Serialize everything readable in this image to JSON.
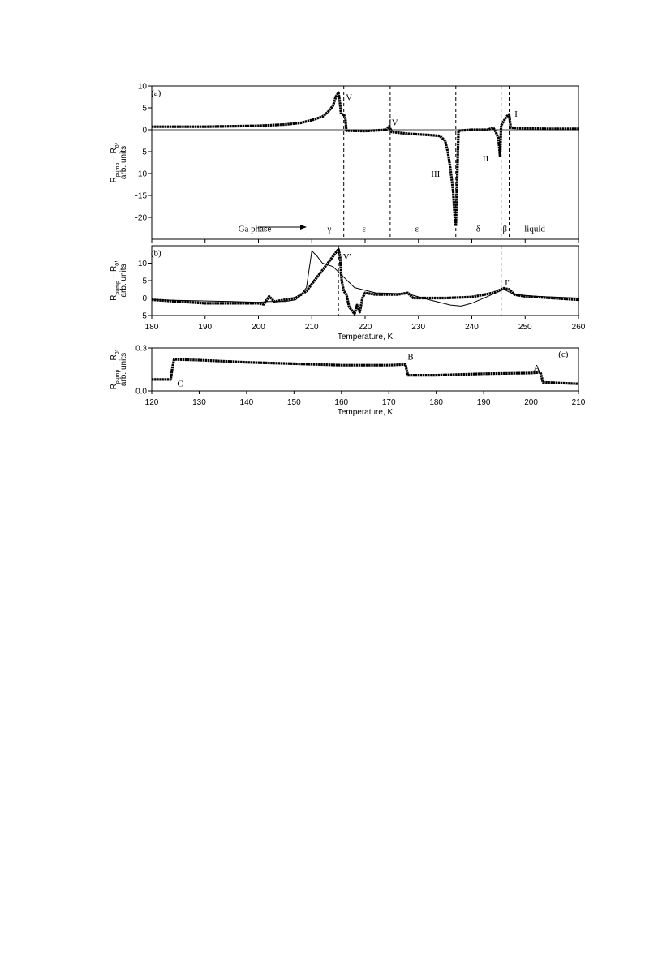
{
  "chart_data": [
    {
      "type": "line",
      "panel_label": "(a)",
      "panel_label_at": [
        180.8,
        8.5
      ],
      "ylabel": {
        "line1": [
          "R",
          "pump",
          " – R",
          "0",
          ","
        ],
        "line2": "arb. units"
      },
      "xlim": [
        180,
        260
      ],
      "xticks": [
        180,
        190,
        200,
        210,
        220,
        230,
        240,
        250,
        260
      ],
      "xtick_labels": false,
      "ylim": [
        -25,
        10
      ],
      "yticks": [
        -20,
        -15,
        -10,
        -5,
        0,
        5,
        10
      ],
      "zero_line": true,
      "vlines": [
        216,
        224.7,
        237,
        245.5,
        247
      ],
      "series": [
        {
          "color": "#000",
          "style": "thick",
          "x": [
            180,
            190,
            200,
            205,
            208,
            210,
            212,
            213,
            214,
            214.5,
            215,
            215.3,
            215.5,
            216,
            216.3,
            216.5,
            220,
            224,
            224.5,
            225,
            228,
            232,
            234,
            235,
            235.5,
            236,
            236.5,
            236.8,
            237,
            237.5,
            240,
            243,
            244,
            244.5,
            245,
            245.3,
            245.5,
            246,
            246.5,
            247,
            247.3,
            250,
            255,
            260
          ],
          "values": [
            0.7,
            0.7,
            0.9,
            1.2,
            1.6,
            2.2,
            3,
            4,
            5.5,
            7.5,
            8.5,
            6,
            3.5,
            3.5,
            2.5,
            -0.2,
            -0.3,
            0,
            0.8,
            -0.5,
            -0.9,
            -1.2,
            -1.4,
            -2.5,
            -5,
            -9,
            -14,
            -20,
            -22,
            -0.2,
            0,
            0,
            0.5,
            -0.5,
            -2,
            -6,
            1,
            2,
            3,
            3.5,
            0.5,
            0.3,
            0.2,
            0.2
          ]
        }
      ],
      "annotations": [
        {
          "text": "V",
          "at": [
            217,
            7.5
          ]
        },
        {
          "text": "IV",
          "at": [
            225.3,
            1.8
          ]
        },
        {
          "text": "III",
          "at": [
            233.2,
            -10
          ]
        },
        {
          "text": "II",
          "at": [
            242.6,
            -6.5
          ]
        },
        {
          "text": "I",
          "at": [
            248.3,
            3.7
          ]
        },
        {
          "text": "Ga phase",
          "at": [
            199.3,
            -22.5
          ]
        },
        {
          "text": "γ",
          "at": [
            213.3,
            -22.5
          ]
        },
        {
          "text": "ε",
          "at": [
            219.8,
            -22.5
          ]
        },
        {
          "text": "ε",
          "at": [
            229.7,
            -22.5
          ]
        },
        {
          "text": "δ",
          "at": [
            241.2,
            -22.5
          ]
        },
        {
          "text": "β",
          "at": [
            246.2,
            -22.5
          ]
        },
        {
          "text": "liquid",
          "at": [
            251.8,
            -22.5
          ]
        }
      ]
    },
    {
      "type": "line",
      "panel_label": "(b)",
      "panel_label_at": [
        180.8,
        13
      ],
      "ylabel": {
        "line1": [
          "R",
          "pump",
          " – R",
          "0",
          ","
        ],
        "line2": "arb. units"
      },
      "xlabel": "Temperature, K",
      "xlim": [
        180,
        260
      ],
      "xticks": [
        180,
        190,
        200,
        210,
        220,
        230,
        240,
        250,
        260
      ],
      "xtick_labels": true,
      "ylim": [
        -5,
        15
      ],
      "yticks": [
        -5,
        0,
        5,
        10
      ],
      "zero_line": true,
      "vlines": [
        215,
        245.5
      ],
      "series": [
        {
          "color": "#000",
          "style": "thin",
          "x": [
            180,
            195,
            200,
            202,
            205,
            207,
            208,
            209,
            210,
            211,
            212,
            214,
            216,
            218,
            222,
            228,
            232,
            236,
            238,
            240,
            243,
            246,
            248,
            252,
            260
          ],
          "values": [
            -0.5,
            -1,
            -1.2,
            -1,
            -1,
            -0.5,
            1,
            3,
            13.5,
            12,
            10,
            9,
            6,
            3,
            1.5,
            1.2,
            -0.5,
            -2,
            -2.3,
            -1.5,
            0.5,
            2.5,
            1,
            0.5,
            0
          ]
        },
        {
          "color": "#000",
          "style": "thick",
          "x": [
            180,
            190,
            200,
            201,
            202,
            203,
            205,
            207,
            209,
            211,
            213,
            215,
            215.3,
            215.6,
            216,
            216.5,
            217,
            218,
            218.5,
            219,
            219.5,
            220,
            222,
            226,
            228,
            229,
            235,
            240,
            244,
            246,
            247,
            248,
            250,
            255,
            260
          ],
          "values": [
            -0.5,
            -1.5,
            -1.5,
            -1.8,
            0.5,
            -1,
            -0.5,
            0,
            2,
            6,
            10,
            14,
            12,
            5,
            2,
            1,
            -2.5,
            -4.5,
            -2,
            -4,
            0,
            1.5,
            1,
            1,
            1.5,
            0,
            0,
            0.3,
            1.5,
            2.8,
            2.5,
            1,
            0.5,
            0,
            -0.5
          ]
        }
      ],
      "annotations": [
        {
          "text": "V'",
          "at": [
            216.6,
            12
          ]
        },
        {
          "text": "I'",
          "at": [
            246.6,
            4.5
          ]
        }
      ]
    },
    {
      "type": "line",
      "panel_label": "(c)",
      "panel_label_at": [
        206.8,
        0.26
      ],
      "ylabel": {
        "line1": [
          "R",
          "pump",
          " – R",
          "0",
          ","
        ],
        "line2": "arb. units"
      },
      "xlabel": "Temperature, K",
      "xlim": [
        120,
        210
      ],
      "xticks": [
        120,
        130,
        140,
        150,
        160,
        170,
        180,
        190,
        200,
        210
      ],
      "xtick_labels": true,
      "ylim": [
        0,
        0.3
      ],
      "yticks": [
        {
          "value": 0,
          "label": "0.0"
        },
        0.3
      ],
      "zero_line": false,
      "vlines": [],
      "series": [
        {
          "color": "#000",
          "style": "thick",
          "x": [
            120,
            124,
            124.3,
            124.7,
            130,
            140,
            150,
            160,
            170,
            173.5,
            174,
            180,
            190,
            200,
            202,
            202.5,
            210
          ],
          "values": [
            0.08,
            0.08,
            0.15,
            0.22,
            0.215,
            0.2,
            0.19,
            0.18,
            0.18,
            0.185,
            0.11,
            0.11,
            0.12,
            0.125,
            0.13,
            0.06,
            0.05
          ]
        }
      ],
      "annotations": [
        {
          "text": "C",
          "at": [
            126,
            0.055
          ]
        },
        {
          "text": "B",
          "at": [
            174.6,
            0.24
          ]
        },
        {
          "text": "A",
          "at": [
            201.2,
            0.165
          ]
        }
      ]
    }
  ]
}
